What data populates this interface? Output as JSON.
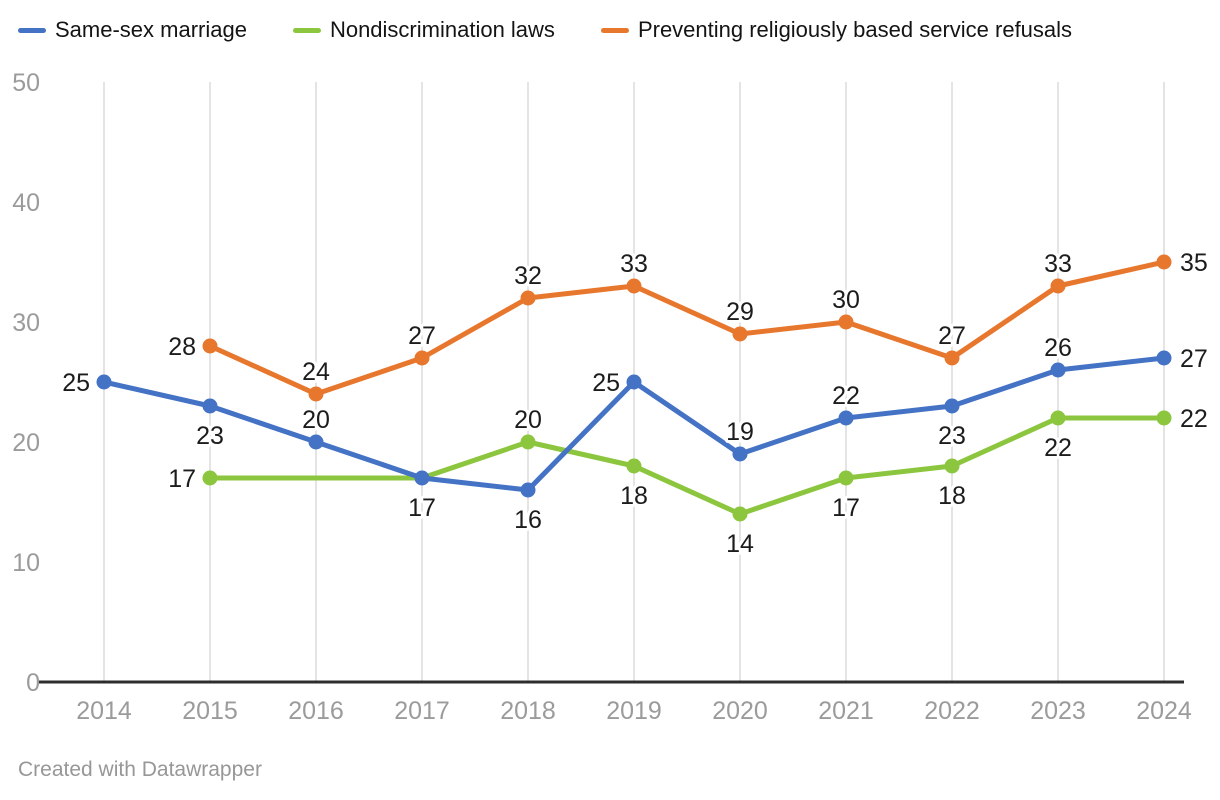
{
  "chart_data": {
    "type": "line",
    "title": "",
    "xlabel": "",
    "ylabel": "",
    "x_categories": [
      2014,
      2015,
      2016,
      2017,
      2018,
      2019,
      2020,
      2021,
      2022,
      2023,
      2024
    ],
    "ylim": [
      0,
      50
    ],
    "y_ticks": [
      0,
      10,
      20,
      30,
      40,
      50
    ],
    "grid": "vertical-only",
    "legend_position": "top",
    "series": [
      {
        "name": "Same-sex marriage",
        "color": "#4472c4",
        "points": [
          {
            "x": 2014,
            "y": 25,
            "label": "25",
            "label_pos": "left"
          },
          {
            "x": 2015,
            "y": 23,
            "label": "23",
            "label_pos": "below"
          },
          {
            "x": 2016,
            "y": 20,
            "label": "20",
            "label_pos": "above"
          },
          {
            "x": 2017,
            "y": 17,
            "label": "17",
            "label_pos": "below"
          },
          {
            "x": 2018,
            "y": 16,
            "label": "16",
            "label_pos": "below"
          },
          {
            "x": 2019,
            "y": 25,
            "label": "25",
            "label_pos": "left"
          },
          {
            "x": 2020,
            "y": 19,
            "label": "19",
            "label_pos": "above"
          },
          {
            "x": 2021,
            "y": 22,
            "label": "22",
            "label_pos": "above"
          },
          {
            "x": 2022,
            "y": 23,
            "label": "23",
            "label_pos": "below"
          },
          {
            "x": 2023,
            "y": 26,
            "label": "26",
            "label_pos": "above"
          },
          {
            "x": 2024,
            "y": 27,
            "label": "27",
            "label_pos": "right"
          }
        ]
      },
      {
        "name": "Nondiscrimination laws",
        "color": "#8cc63e",
        "points": [
          {
            "x": 2015,
            "y": 17,
            "label": "17",
            "label_pos": "left"
          },
          {
            "x": 2016,
            "y": 17,
            "label": null,
            "marker": false
          },
          {
            "x": 2017,
            "y": 17,
            "label": null,
            "marker": false
          },
          {
            "x": 2018,
            "y": 20,
            "label": "20",
            "label_pos": "above"
          },
          {
            "x": 2019,
            "y": 18,
            "label": "18",
            "label_pos": "below"
          },
          {
            "x": 2020,
            "y": 14,
            "label": "14",
            "label_pos": "below"
          },
          {
            "x": 2021,
            "y": 17,
            "label": "17",
            "label_pos": "below"
          },
          {
            "x": 2022,
            "y": 18,
            "label": "18",
            "label_pos": "below"
          },
          {
            "x": 2023,
            "y": 22,
            "label": "22",
            "label_pos": "below"
          },
          {
            "x": 2024,
            "y": 22,
            "label": "22",
            "label_pos": "right"
          }
        ]
      },
      {
        "name": "Preventing religiously based service refusals",
        "color": "#e8772e",
        "points": [
          {
            "x": 2015,
            "y": 28,
            "label": "28",
            "label_pos": "left"
          },
          {
            "x": 2016,
            "y": 24,
            "label": "24",
            "label_pos": "above"
          },
          {
            "x": 2017,
            "y": 27,
            "label": "27",
            "label_pos": "above"
          },
          {
            "x": 2018,
            "y": 32,
            "label": "32",
            "label_pos": "above"
          },
          {
            "x": 2019,
            "y": 33,
            "label": "33",
            "label_pos": "above"
          },
          {
            "x": 2020,
            "y": 29,
            "label": "29",
            "label_pos": "above"
          },
          {
            "x": 2021,
            "y": 30,
            "label": "30",
            "label_pos": "above"
          },
          {
            "x": 2022,
            "y": 27,
            "label": "27",
            "label_pos": "above"
          },
          {
            "x": 2023,
            "y": 33,
            "label": "33",
            "label_pos": "above"
          },
          {
            "x": 2024,
            "y": 35,
            "label": "35",
            "label_pos": "right"
          }
        ]
      }
    ]
  },
  "footer": {
    "credit": "Created with Datawrapper"
  },
  "colors": {
    "background": "#ffffff",
    "axis_line": "#2d2d2d",
    "gridline": "#e4e4e4",
    "tick_label": "#9b9b9b",
    "data_label": "#1c1c1c",
    "legend_text": "#141414",
    "footer_text": "#979797"
  }
}
